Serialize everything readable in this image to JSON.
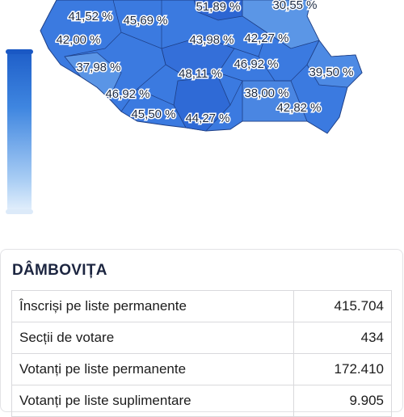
{
  "map": {
    "labels": [
      "41,52 %",
      "45,69 %",
      "51,89 %",
      "30,55 %",
      "42,00 %",
      "43,98 %",
      "42,27 %",
      "37,98 %",
      "48,11 %",
      "46,92 %",
      "39,50 %",
      "46,92 %",
      "38,00 %",
      "45,50 %",
      "44,27 %",
      "42,82 %"
    ]
  },
  "panel": {
    "title": "DÂMBOVIȚA",
    "rows": [
      [
        "Înscriși pe liste permanente",
        "415.704"
      ],
      [
        "Secții de votare",
        "434"
      ],
      [
        "Votanți pe liste permanente",
        "172.410"
      ],
      [
        "Votanți pe liste suplimentare",
        "9.905"
      ]
    ]
  }
}
